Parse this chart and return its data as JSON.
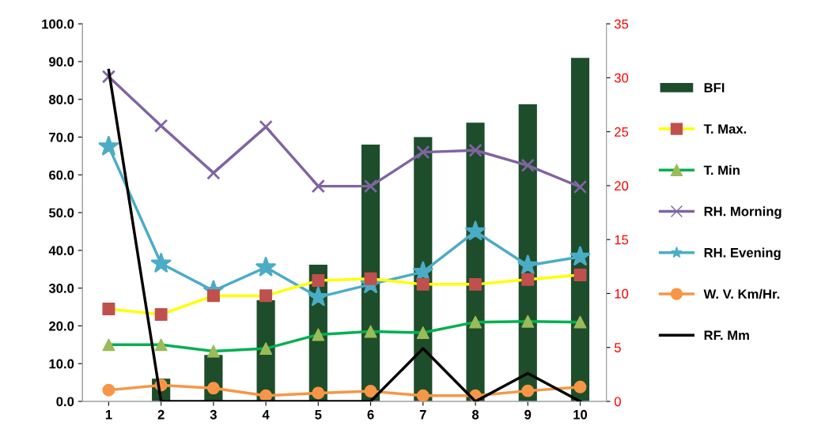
{
  "chart_data": {
    "type": "line",
    "categories": [
      "1",
      "2",
      "3",
      "4",
      "5",
      "6",
      "7",
      "8",
      "9",
      "10"
    ],
    "ylim": [
      0,
      100
    ],
    "yticks": [
      {
        "value": 0,
        "label": "0.0"
      },
      {
        "value": 10,
        "label": "10.0"
      },
      {
        "value": 20,
        "label": "20.0"
      },
      {
        "value": 30,
        "label": "30.0"
      },
      {
        "value": 40,
        "label": "40.0"
      },
      {
        "value": 50,
        "label": "50.0"
      },
      {
        "value": 60,
        "label": "60.0"
      },
      {
        "value": 70,
        "label": "70.0"
      },
      {
        "value": 80,
        "label": "80.0"
      },
      {
        "value": 90,
        "label": "90.0"
      },
      {
        "value": 100,
        "label": "100.0"
      }
    ],
    "y2lim": [
      0,
      35
    ],
    "y2ticks": [
      0,
      5,
      10,
      15,
      20,
      25,
      30,
      35
    ],
    "grid": false,
    "legend": "right",
    "series": [
      {
        "name": "BFI",
        "type": "bar",
        "color": "#1e4d2b",
        "values": [
          0,
          6,
          12.3,
          26.8,
          36.2,
          68,
          70,
          73.8,
          78.7,
          91
        ]
      },
      {
        "name": "T. Max.",
        "color": "#ffff00",
        "colors": [
          "#c0504d",
          "#c0504d",
          "#c0504d",
          "#c0504d",
          "#c0504d",
          "#c0504d",
          "#c0504d",
          "#c0504d",
          "#c0504d",
          "#c0504d"
        ],
        "marker": "square",
        "values": [
          24.5,
          23,
          28,
          28,
          32,
          32.5,
          31,
          31,
          32.3,
          33.5
        ]
      },
      {
        "name": "T. Min",
        "color": "#00b050",
        "colors": [
          "#9bbb59",
          "#9bbb59",
          "#9bbb59",
          "#9bbb59",
          "#9bbb59",
          "#9bbb59",
          "#9bbb59",
          "#9bbb59",
          "#9bbb59",
          "#9bbb59"
        ],
        "marker": "triangle",
        "values": [
          15,
          15,
          13.3,
          14,
          17.7,
          18.5,
          18.2,
          21,
          21.2,
          21
        ]
      },
      {
        "name": "RH. Morning",
        "color": "#8064a2",
        "marker": "cross",
        "values": [
          86,
          73,
          60.5,
          72.7,
          57,
          57,
          66,
          66.5,
          62.5,
          56.8
        ]
      },
      {
        "name": "RH. Evening",
        "color": "#4bacc6",
        "marker": "star",
        "values": [
          67.5,
          36.5,
          29.3,
          35.5,
          27.6,
          31,
          34.3,
          45,
          36,
          38.3
        ]
      },
      {
        "name": "W. V. Km/Hr.",
        "color": "#f79646",
        "marker": "circle",
        "values": [
          3,
          4.3,
          3.5,
          1.5,
          2.2,
          2.7,
          1.5,
          1.5,
          2.8,
          3.8
        ]
      },
      {
        "name": "RF. Mm",
        "color": "#000000",
        "marker": "none",
        "axis": "y2",
        "values": [
          30.7,
          0,
          0,
          0,
          0,
          0,
          4.9,
          0,
          2.6,
          0
        ]
      }
    ]
  }
}
